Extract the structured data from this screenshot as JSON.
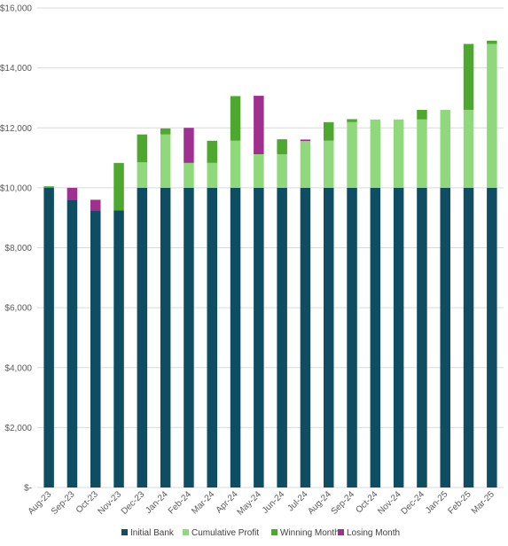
{
  "chart_data": {
    "type": "bar",
    "stacked": true,
    "title": "",
    "xlabel": "",
    "ylabel": "",
    "ylim": [
      0,
      16000
    ],
    "y_ticks": [
      "$-",
      "$2,000",
      "$4,000",
      "$6,000",
      "$8,000",
      "$10,000",
      "$12,000",
      "$14,000",
      "$16,000"
    ],
    "y_tick_values": [
      0,
      2000,
      4000,
      6000,
      8000,
      10000,
      12000,
      14000,
      16000
    ],
    "grid": true,
    "legend_position": "bottom",
    "categories": [
      "Aug-23",
      "Sep-23",
      "Oct-23",
      "Nov-23",
      "Dec-23",
      "Jan-24",
      "Feb-24",
      "Mar-24",
      "Apr-24",
      "May-24",
      "Jun-24",
      "Jul-24",
      "Aug-24",
      "Sep-24",
      "Oct-24",
      "Nov-24",
      "Dec-24",
      "Jan-25",
      "Feb-25",
      "Mar-25"
    ],
    "series": [
      {
        "name": "Initial Bank",
        "color": "#0f4d63",
        "values": [
          10000,
          9600,
          9250,
          9250,
          10000,
          10000,
          10000,
          10000,
          10000,
          10000,
          10000,
          10000,
          10000,
          10000,
          10000,
          10000,
          10000,
          10000,
          10000,
          10000
        ]
      },
      {
        "name": "Cumulative Profit",
        "color": "#8fd97c",
        "values": [
          0,
          0,
          0,
          0,
          850,
          1780,
          830,
          830,
          1570,
          1120,
          1120,
          1560,
          1570,
          2190,
          2280,
          2280,
          2280,
          2600,
          2600,
          4800
        ]
      },
      {
        "name": "Winning Month",
        "color": "#4ea72e",
        "values": [
          50,
          0,
          0,
          1580,
          930,
          200,
          0,
          740,
          1490,
          0,
          500,
          0,
          620,
          100,
          0,
          0,
          320,
          0,
          2200,
          110
        ]
      },
      {
        "name": "Losing Month",
        "color": "#a0308f",
        "values": [
          0,
          400,
          350,
          0,
          0,
          0,
          1170,
          0,
          0,
          1950,
          0,
          50,
          0,
          0,
          0,
          0,
          0,
          0,
          0,
          0
        ]
      }
    ]
  }
}
